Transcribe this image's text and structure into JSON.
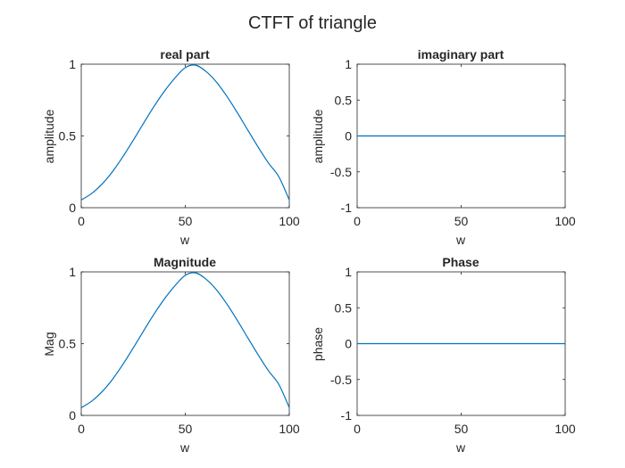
{
  "figure": {
    "title": "CTFT of triangle"
  },
  "colors": {
    "line": "#0072BD",
    "axes": "#262626",
    "background": "#ffffff"
  },
  "chart_data": [
    {
      "type": "line",
      "title": "real part",
      "xlabel": "w",
      "ylabel": "amplitude",
      "xlim": [
        0,
        100
      ],
      "ylim": [
        0,
        1
      ],
      "xticks": [
        "0",
        "50",
        "100"
      ],
      "yticks": [
        "0",
        "0.5",
        "1"
      ],
      "grid": false,
      "series": [
        {
          "x": [
            0,
            5,
            10,
            15,
            20,
            25,
            30,
            35,
            40,
            45,
            50,
            55,
            60,
            65,
            70,
            75,
            80,
            85,
            90,
            95,
            100
          ],
          "y": [
            0.054,
            0.099,
            0.165,
            0.251,
            0.355,
            0.47,
            0.59,
            0.706,
            0.812,
            0.903,
            0.976,
            0.993,
            0.949,
            0.875,
            0.776,
            0.663,
            0.542,
            0.423,
            0.311,
            0.215,
            0.054
          ]
        }
      ]
    },
    {
      "type": "line",
      "title": "imaginary part",
      "xlabel": "w",
      "ylabel": "amplitude",
      "xlim": [
        0,
        100
      ],
      "ylim": [
        -1,
        1
      ],
      "xticks": [
        "0",
        "50",
        "100"
      ],
      "yticks": [
        "-1",
        "-0.5",
        "0",
        "0.5",
        "1"
      ],
      "grid": false,
      "series": [
        {
          "x": [
            0,
            100
          ],
          "y": [
            0,
            0
          ]
        }
      ]
    },
    {
      "type": "line",
      "title": "Magnitude",
      "xlabel": "w",
      "ylabel": "Mag",
      "xlim": [
        0,
        100
      ],
      "ylim": [
        0,
        1
      ],
      "xticks": [
        "0",
        "50",
        "100"
      ],
      "yticks": [
        "0",
        "0.5",
        "1"
      ],
      "grid": false,
      "series": [
        {
          "x": [
            0,
            5,
            10,
            15,
            20,
            25,
            30,
            35,
            40,
            45,
            50,
            55,
            60,
            65,
            70,
            75,
            80,
            85,
            90,
            95,
            100
          ],
          "y": [
            0.054,
            0.099,
            0.165,
            0.251,
            0.355,
            0.47,
            0.59,
            0.706,
            0.812,
            0.903,
            0.976,
            0.993,
            0.949,
            0.875,
            0.776,
            0.663,
            0.542,
            0.423,
            0.311,
            0.215,
            0.054
          ]
        }
      ]
    },
    {
      "type": "line",
      "title": "Phase",
      "xlabel": "w",
      "ylabel": "phase",
      "xlim": [
        0,
        100
      ],
      "ylim": [
        -1,
        1
      ],
      "xticks": [
        "0",
        "50",
        "100"
      ],
      "yticks": [
        "-1",
        "-0.5",
        "0",
        "0.5",
        "1"
      ],
      "grid": false,
      "series": [
        {
          "x": [
            0,
            100
          ],
          "y": [
            0,
            0
          ]
        }
      ]
    }
  ]
}
